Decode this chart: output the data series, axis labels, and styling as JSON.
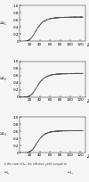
{
  "sublayers": [
    "L1",
    "L2",
    "L3"
  ],
  "ylabel_labels": [
    "$\\omega_{L_1}$",
    "$\\omega_{L_2}$",
    "$\\omega_{L_3}$"
  ],
  "xlabel": "Z",
  "xmin": 0,
  "xmax": 130,
  "ymin": 0,
  "ymax": 1.0,
  "xticks": [
    20,
    40,
    60,
    80,
    100,
    120
  ],
  "ytick_labels": [
    "0",
    "0.2",
    "0.4",
    "0.6",
    "0.8",
    "1.0"
  ],
  "yticks": [
    0.0,
    0.2,
    0.4,
    0.6,
    0.8,
    1.0
  ],
  "caption": "In the case of $L_2$, the effective yield is equal to    $\\omega_{L_2}$",
  "background_color": "#f5f5f5",
  "line_color": "#444444",
  "line_width": 0.6,
  "L1_params": {
    "a": 8000000.0,
    "b": 0.68,
    "power": 4.5
  },
  "L2_params": {
    "a": 30000000.0,
    "b": 0.66,
    "power": 4.8
  },
  "L3_params": {
    "a": 60000000.0,
    "b": 0.62,
    "power": 5.0
  }
}
